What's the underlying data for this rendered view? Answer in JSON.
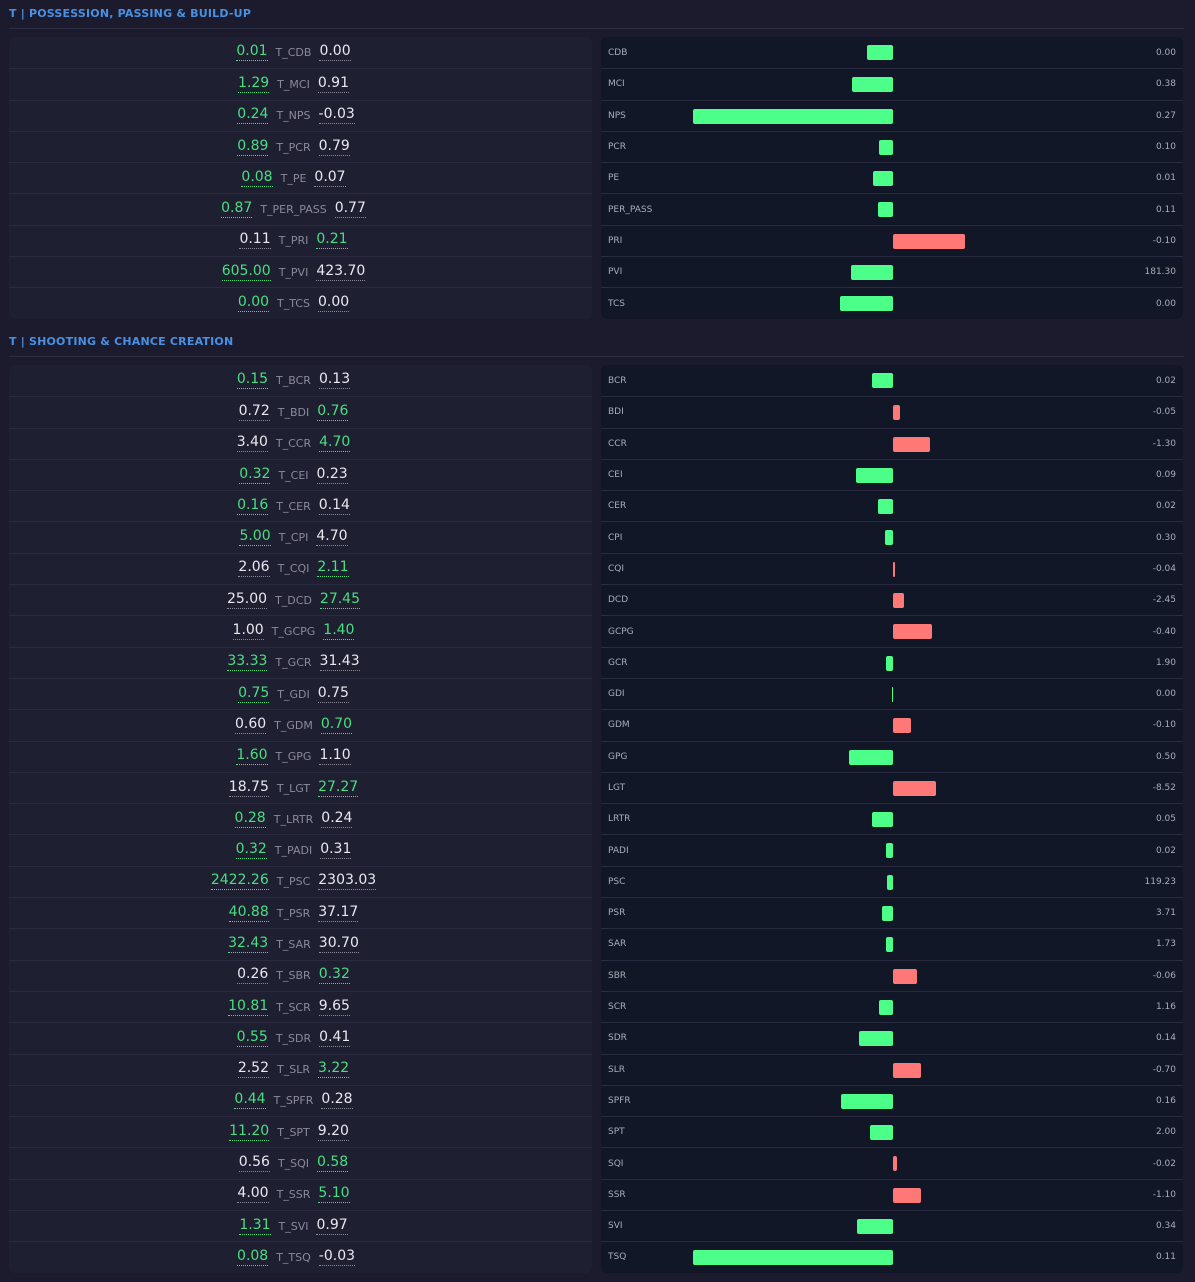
{
  "colors": {
    "accent": "#4a90e2",
    "better": "#4ade80",
    "bar_positive": "#4bff88",
    "bar_negative": "#ff7878",
    "bg": "#1b1b2d"
  },
  "sections": [
    {
      "title": "T | POSSESSION, PASSING & BUILD-UP",
      "rows": [
        {
          "left": "0.01",
          "metric": "T_CDB",
          "right": "0.00",
          "winner": "left",
          "label": "CDB",
          "diff": "0.00",
          "bar": 26,
          "dir": "pos"
        },
        {
          "left": "1.29",
          "metric": "T_MCI",
          "right": "0.91",
          "winner": "left",
          "label": "MCI",
          "diff": "0.38",
          "bar": 41,
          "dir": "pos"
        },
        {
          "left": "0.24",
          "metric": "T_NPS",
          "right": "-0.03",
          "winner": "left",
          "label": "NPS",
          "diff": "0.27",
          "bar": 200,
          "dir": "pos"
        },
        {
          "left": "0.89",
          "metric": "T_PCR",
          "right": "0.79",
          "winner": "left",
          "label": "PCR",
          "diff": "0.10",
          "bar": 14,
          "dir": "pos"
        },
        {
          "left": "0.08",
          "metric": "T_PE",
          "right": "0.07",
          "winner": "left",
          "label": "PE",
          "diff": "0.01",
          "bar": 20,
          "dir": "pos"
        },
        {
          "left": "0.87",
          "metric": "T_PER_PASS",
          "right": "0.77",
          "winner": "left",
          "label": "PER_PASS",
          "diff": "0.11",
          "bar": 15,
          "dir": "pos"
        },
        {
          "left": "0.11",
          "metric": "T_PRI",
          "right": "0.21",
          "winner": "right",
          "label": "PRI",
          "diff": "-0.10",
          "bar": 72,
          "dir": "neg"
        },
        {
          "left": "605.00",
          "metric": "T_PVI",
          "right": "423.70",
          "winner": "left",
          "label": "PVI",
          "diff": "181.30",
          "bar": 42,
          "dir": "pos"
        },
        {
          "left": "0.00",
          "metric": "T_TCS",
          "right": "0.00",
          "winner": "left",
          "label": "TCS",
          "diff": "0.00",
          "bar": 53,
          "dir": "pos"
        }
      ]
    },
    {
      "title": "T | SHOOTING & CHANCE CREATION",
      "rows": [
        {
          "left": "0.15",
          "metric": "T_BCR",
          "right": "0.13",
          "winner": "left",
          "label": "BCR",
          "diff": "0.02",
          "bar": 21,
          "dir": "pos"
        },
        {
          "left": "0.72",
          "metric": "T_BDI",
          "right": "0.76",
          "winner": "right",
          "label": "BDI",
          "diff": "-0.05",
          "bar": 7,
          "dir": "neg"
        },
        {
          "left": "3.40",
          "metric": "T_CCR",
          "right": "4.70",
          "winner": "right",
          "label": "CCR",
          "diff": "-1.30",
          "bar": 37,
          "dir": "neg"
        },
        {
          "left": "0.32",
          "metric": "T_CEI",
          "right": "0.23",
          "winner": "left",
          "label": "CEI",
          "diff": "0.09",
          "bar": 37,
          "dir": "pos"
        },
        {
          "left": "0.16",
          "metric": "T_CER",
          "right": "0.14",
          "winner": "left",
          "label": "CER",
          "diff": "0.02",
          "bar": 15,
          "dir": "pos"
        },
        {
          "left": "5.00",
          "metric": "T_CPI",
          "right": "4.70",
          "winner": "left",
          "label": "CPI",
          "diff": "0.30",
          "bar": 8,
          "dir": "pos"
        },
        {
          "left": "2.06",
          "metric": "T_CQI",
          "right": "2.11",
          "winner": "right",
          "label": "CQI",
          "diff": "-0.04",
          "bar": 2,
          "dir": "neg"
        },
        {
          "left": "25.00",
          "metric": "T_DCD",
          "right": "27.45",
          "winner": "right",
          "label": "DCD",
          "diff": "-2.45",
          "bar": 11,
          "dir": "neg"
        },
        {
          "left": "1.00",
          "metric": "T_GCPG",
          "right": "1.40",
          "winner": "right",
          "label": "GCPG",
          "diff": "-0.40",
          "bar": 39,
          "dir": "neg"
        },
        {
          "left": "33.33",
          "metric": "T_GCR",
          "right": "31.43",
          "winner": "left",
          "label": "GCR",
          "diff": "1.90",
          "bar": 7,
          "dir": "pos"
        },
        {
          "left": "0.75",
          "metric": "T_GDI",
          "right": "0.75",
          "winner": "left",
          "label": "GDI",
          "diff": "0.00",
          "bar": 1,
          "dir": "pos"
        },
        {
          "left": "0.60",
          "metric": "T_GDM",
          "right": "0.70",
          "winner": "right",
          "label": "GDM",
          "diff": "-0.10",
          "bar": 18,
          "dir": "neg"
        },
        {
          "left": "1.60",
          "metric": "T_GPG",
          "right": "1.10",
          "winner": "left",
          "label": "GPG",
          "diff": "0.50",
          "bar": 44,
          "dir": "pos"
        },
        {
          "left": "18.75",
          "metric": "T_LGT",
          "right": "27.27",
          "winner": "right",
          "label": "LGT",
          "diff": "-8.52",
          "bar": 43,
          "dir": "neg"
        },
        {
          "left": "0.28",
          "metric": "T_LRTR",
          "right": "0.24",
          "winner": "left",
          "label": "LRTR",
          "diff": "0.05",
          "bar": 21,
          "dir": "pos"
        },
        {
          "left": "0.32",
          "metric": "T_PADI",
          "right": "0.31",
          "winner": "left",
          "label": "PADI",
          "diff": "0.02",
          "bar": 7,
          "dir": "pos"
        },
        {
          "left": "2422.26",
          "metric": "T_PSC",
          "right": "2303.03",
          "winner": "left",
          "label": "PSC",
          "diff": "119.23",
          "bar": 6,
          "dir": "pos"
        },
        {
          "left": "40.88",
          "metric": "T_PSR",
          "right": "37.17",
          "winner": "left",
          "label": "PSR",
          "diff": "3.71",
          "bar": 11,
          "dir": "pos"
        },
        {
          "left": "32.43",
          "metric": "T_SAR",
          "right": "30.70",
          "winner": "left",
          "label": "SAR",
          "diff": "1.73",
          "bar": 7,
          "dir": "pos"
        },
        {
          "left": "0.26",
          "metric": "T_SBR",
          "right": "0.32",
          "winner": "right",
          "label": "SBR",
          "diff": "-0.06",
          "bar": 24,
          "dir": "neg"
        },
        {
          "left": "10.81",
          "metric": "T_SCR",
          "right": "9.65",
          "winner": "left",
          "label": "SCR",
          "diff": "1.16",
          "bar": 14,
          "dir": "pos"
        },
        {
          "left": "0.55",
          "metric": "T_SDR",
          "right": "0.41",
          "winner": "left",
          "label": "SDR",
          "diff": "0.14",
          "bar": 34,
          "dir": "pos"
        },
        {
          "left": "2.52",
          "metric": "T_SLR",
          "right": "3.22",
          "winner": "right",
          "label": "SLR",
          "diff": "-0.70",
          "bar": 28,
          "dir": "neg"
        },
        {
          "left": "0.44",
          "metric": "T_SPFR",
          "right": "0.28",
          "winner": "left",
          "label": "SPFR",
          "diff": "0.16",
          "bar": 52,
          "dir": "pos"
        },
        {
          "left": "11.20",
          "metric": "T_SPT",
          "right": "9.20",
          "winner": "left",
          "label": "SPT",
          "diff": "2.00",
          "bar": 23,
          "dir": "pos"
        },
        {
          "left": "0.56",
          "metric": "T_SQI",
          "right": "0.58",
          "winner": "right",
          "label": "SQI",
          "diff": "-0.02",
          "bar": 4,
          "dir": "neg"
        },
        {
          "left": "4.00",
          "metric": "T_SSR",
          "right": "5.10",
          "winner": "right",
          "label": "SSR",
          "diff": "-1.10",
          "bar": 28,
          "dir": "neg"
        },
        {
          "left": "1.31",
          "metric": "T_SVI",
          "right": "0.97",
          "winner": "left",
          "label": "SVI",
          "diff": "0.34",
          "bar": 36,
          "dir": "pos"
        },
        {
          "left": "0.08",
          "metric": "T_TSQ",
          "right": "-0.03",
          "winner": "left",
          "label": "TSQ",
          "diff": "0.11",
          "bar": 200,
          "dir": "pos"
        }
      ]
    }
  ]
}
